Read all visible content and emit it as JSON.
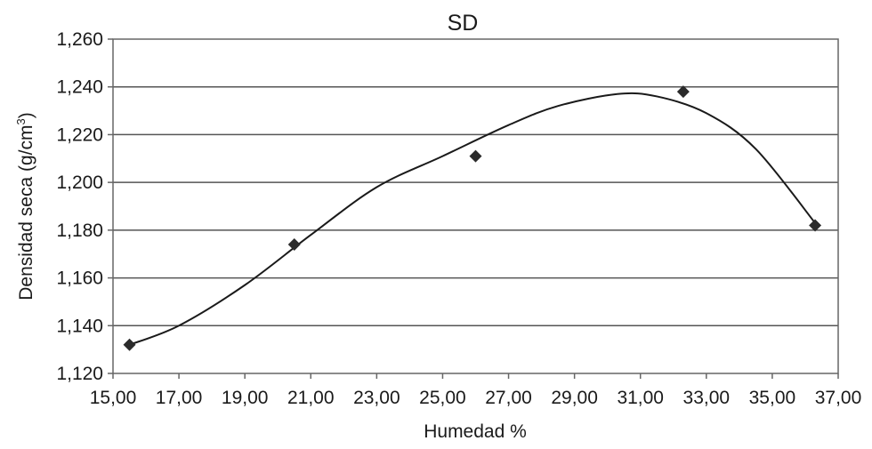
{
  "chart_data": {
    "type": "scatter",
    "title": "SD",
    "xlabel": "Humedad %",
    "ylabel_main": "Densidad seca (g/cm",
    "ylabel_sup": "3",
    "ylabel_end": ")",
    "xlim": [
      15,
      37
    ],
    "ylim": [
      1.12,
      1.26
    ],
    "x_ticks": [
      15,
      17,
      19,
      21,
      23,
      25,
      27,
      29,
      31,
      33,
      35,
      37
    ],
    "x_tick_labels": [
      "15,00",
      "17,00",
      "19,00",
      "21,00",
      "23,00",
      "25,00",
      "27,00",
      "29,00",
      "31,00",
      "33,00",
      "35,00",
      "37,00"
    ],
    "y_ticks": [
      1.12,
      1.14,
      1.16,
      1.18,
      1.2,
      1.22,
      1.24,
      1.26
    ],
    "y_tick_labels": [
      "1,120",
      "1,140",
      "1,160",
      "1,180",
      "1,200",
      "1,220",
      "1,240",
      "1,260"
    ],
    "grid": "horizontal",
    "series": [
      {
        "marker": "diamond",
        "x": [
          15.5,
          20.5,
          26.0,
          32.3,
          36.3
        ],
        "y": [
          1.132,
          1.174,
          1.211,
          1.238,
          1.182
        ]
      }
    ],
    "trendline": {
      "type": "polynomial",
      "x": [
        15.5,
        17.0,
        19.0,
        21.0,
        23.0,
        25.0,
        27.0,
        28.5,
        30.3,
        31.5,
        33.0,
        34.5,
        36.3
      ],
      "y": [
        1.132,
        1.14,
        1.157,
        1.178,
        1.198,
        1.211,
        1.224,
        1.232,
        1.237,
        1.236,
        1.229,
        1.214,
        1.183
      ]
    },
    "colors": {
      "marker": "#2b2b2b",
      "line": "#1a1a1a",
      "grid": "#555555",
      "frame": "#666666"
    }
  }
}
